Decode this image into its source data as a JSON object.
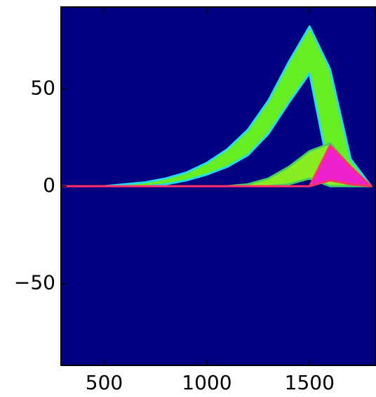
{
  "chart_data": {
    "type": "band",
    "x": [
      300,
      400,
      500,
      600,
      700,
      800,
      900,
      1000,
      1100,
      1200,
      1300,
      1400,
      1500,
      1600,
      1700,
      1800
    ],
    "background": "#000080",
    "series": [
      {
        "color": "#66ee22",
        "edge": "#22ddee",
        "upper": [
          0,
          0,
          0,
          1,
          2,
          4,
          7,
          12,
          19,
          29,
          44,
          64,
          82,
          60,
          14,
          0
        ],
        "lower": [
          0,
          0,
          0,
          0,
          0,
          1,
          3,
          6,
          10,
          16,
          27,
          43,
          58,
          5,
          0,
          0
        ]
      },
      {
        "color": "#88ee22",
        "edge": "#44cc66",
        "upper": [
          0,
          0,
          0,
          0,
          0,
          0,
          0,
          0,
          0,
          1,
          4,
          10,
          18,
          22,
          10,
          0
        ],
        "lower": [
          0,
          0,
          0,
          0,
          0,
          0,
          0,
          0,
          0,
          0,
          0,
          1,
          4,
          0,
          0,
          0
        ]
      },
      {
        "color": "#ee22cc",
        "edge": "#ff3366",
        "upper": [
          0,
          0,
          0,
          0,
          0,
          0,
          0,
          0,
          0,
          0,
          0,
          0,
          0,
          21,
          10,
          0
        ],
        "lower": [
          0,
          0,
          0,
          0,
          0,
          0,
          0,
          0,
          0,
          0,
          0,
          0,
          0,
          3,
          1,
          0
        ]
      }
    ],
    "xlim": [
      290,
      1820
    ],
    "ylim": [
      -92,
      92
    ],
    "xticks": [
      500,
      1000,
      1500
    ],
    "yticks": [
      {
        "value": -50,
        "label": "−50"
      },
      0,
      50
    ]
  }
}
